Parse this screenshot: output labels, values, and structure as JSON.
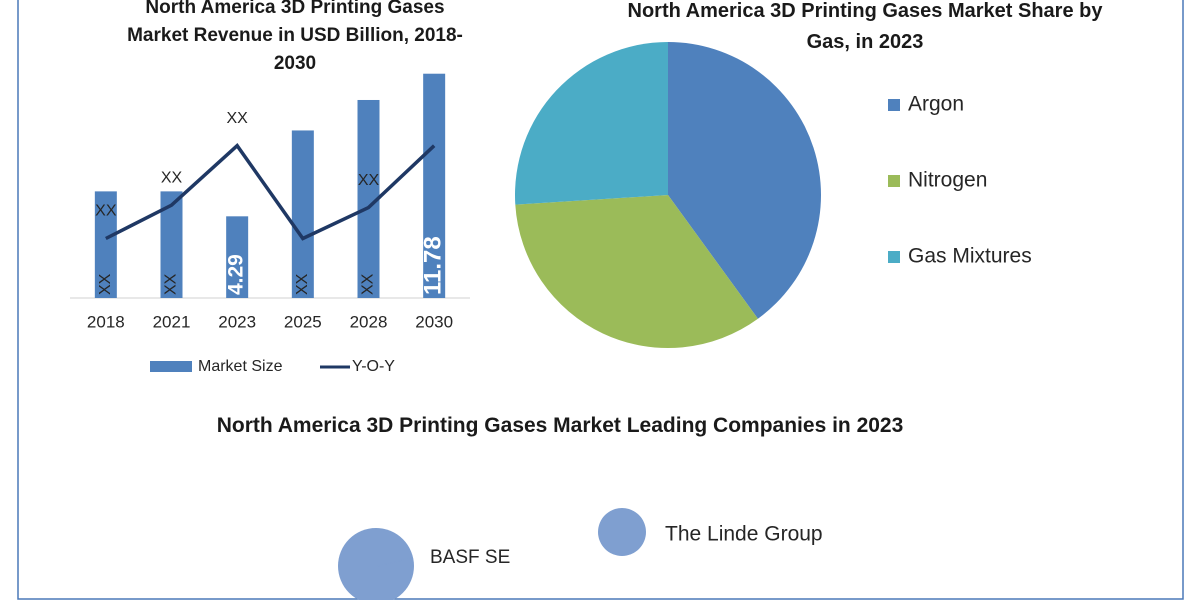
{
  "chart_data": [
    {
      "type": "bar",
      "title": "North America 3D Printing Gases Market Revenue in USD Billion, 2018-2030",
      "categories": [
        "2018",
        "2021",
        "2023",
        "2025",
        "2028",
        "2030"
      ],
      "series": [
        {
          "name": "Market Size",
          "color": "#4f81bd",
          "values": [
            5.6,
            5.6,
            4.29,
            8.8,
            10.4,
            11.78
          ],
          "value_labels": [
            "XX",
            "XX",
            "4.29",
            "XX",
            "XX",
            "11.78"
          ]
        },
        {
          "name": "Y-O-Y",
          "type": "line",
          "axis": "y2",
          "color": "#1f3864",
          "values": [
            2.5,
            3.9,
            6.4,
            2.5,
            3.8,
            6.4
          ],
          "value_labels": [
            "XX",
            "XX",
            "XX",
            null,
            "XX",
            null
          ]
        }
      ],
      "ylim": [
        0,
        12.5
      ],
      "y2lim": [
        0,
        10
      ],
      "grid": false
    },
    {
      "type": "pie",
      "title": "North America 3D Printing Gases Market Share by Gas, in 2023",
      "categories": [
        "Argon",
        "Nitrogen",
        "Gas Mixtures"
      ],
      "values": [
        40,
        34,
        26
      ],
      "colors": [
        "#4f81bd",
        "#9bbb59",
        "#4bacc6"
      ]
    }
  ],
  "leading_companies": {
    "title": "North America 3D Printing Gases Market Leading Companies in 2023",
    "companies": [
      "BASF SE",
      "The Linde Group"
    ]
  }
}
